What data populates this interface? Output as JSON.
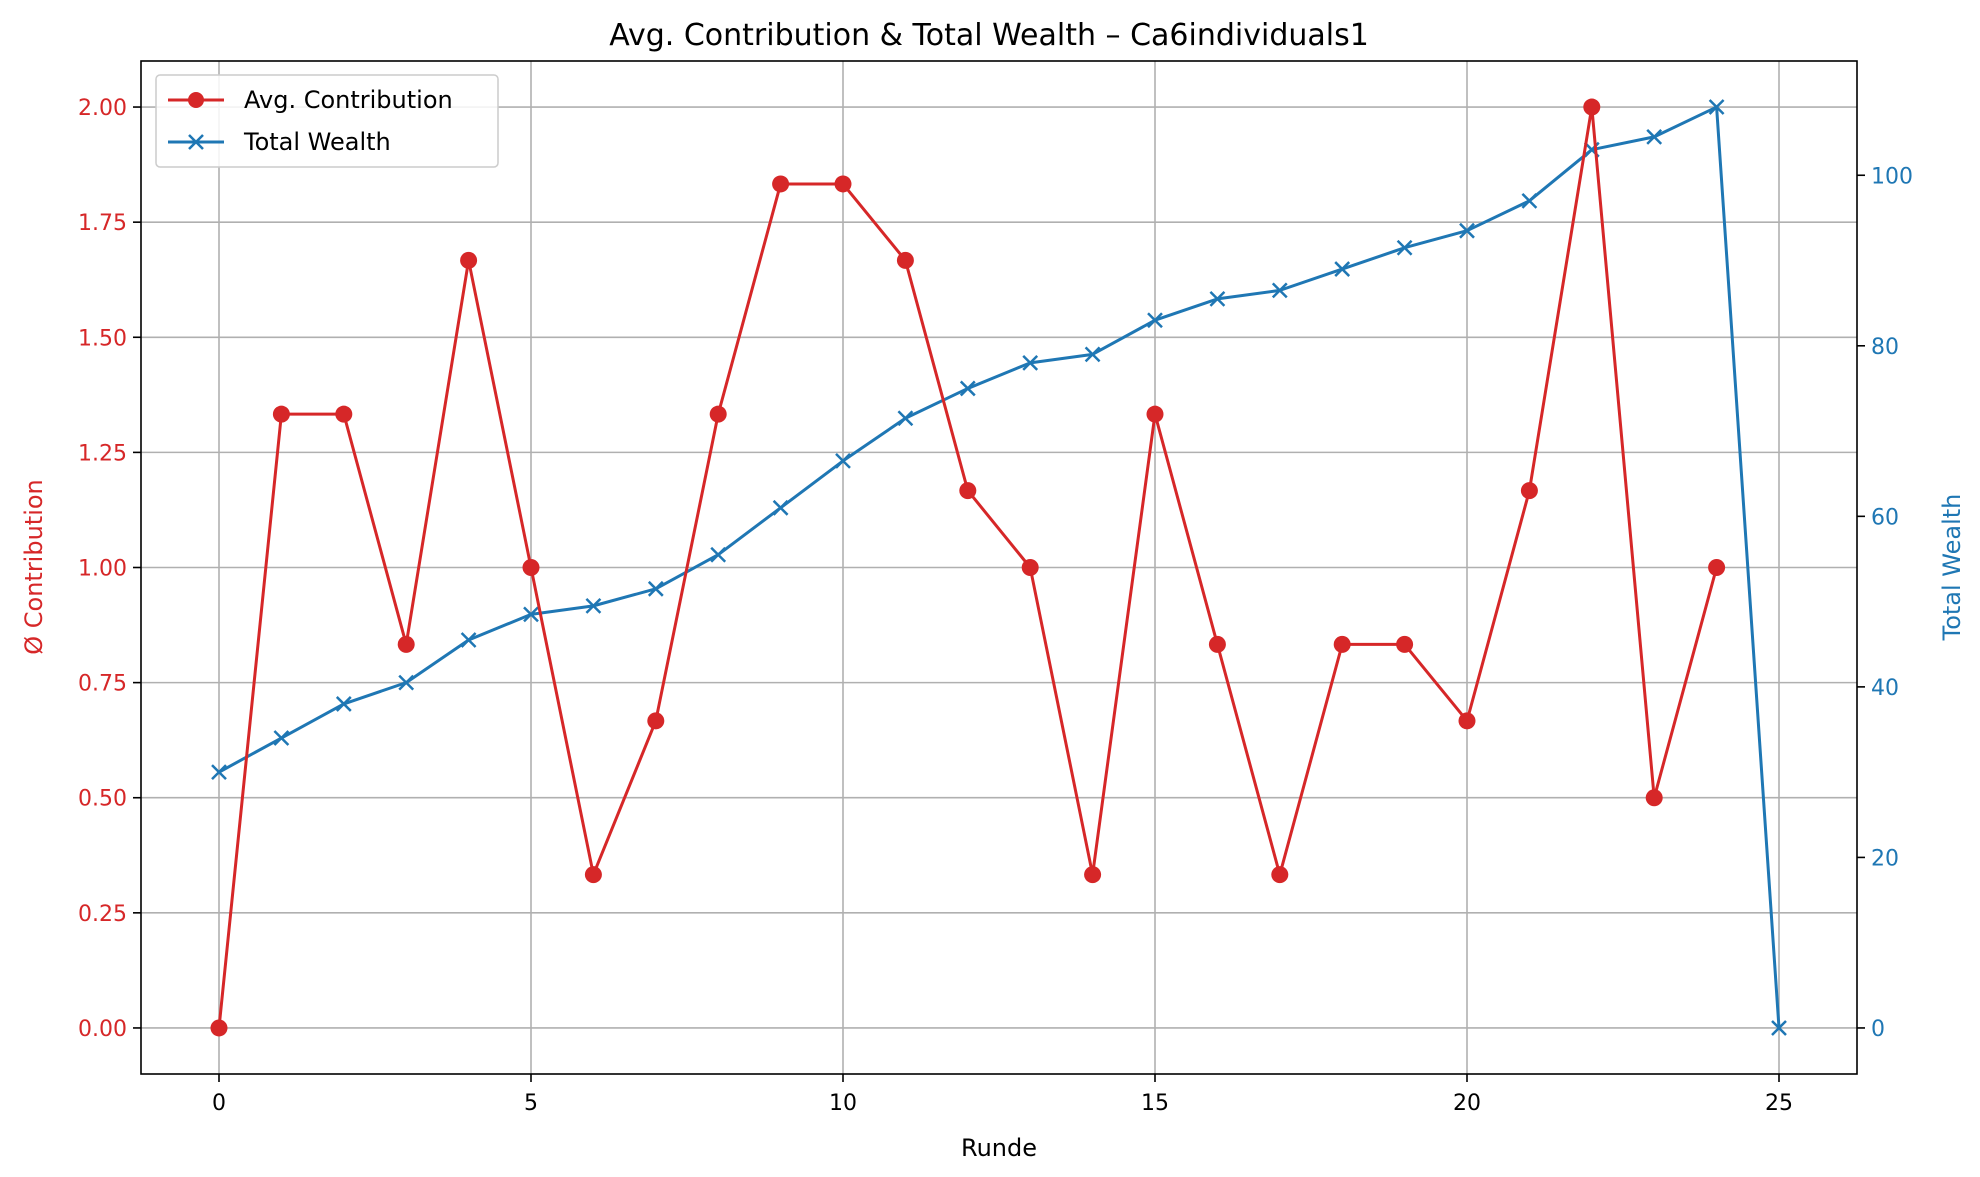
{
  "chart_data": {
    "type": "line",
    "title": "Avg. Contribution & Total Wealth – Ca6individuals1",
    "xlabel": "Runde",
    "ylabel_left": "Ø Contribution",
    "ylabel_right": "Total Wealth",
    "xlim": [
      -1.25,
      26.25
    ],
    "ylim_left": [
      -0.1,
      2.1
    ],
    "ylim_right": [
      -5.4,
      113.4
    ],
    "x_ticks": [
      0,
      5,
      10,
      15,
      20,
      25
    ],
    "y_ticks_left": [
      "0.00",
      "0.25",
      "0.50",
      "0.75",
      "1.00",
      "1.25",
      "1.50",
      "1.75",
      "2.00"
    ],
    "y_ticks_right": [
      0,
      20,
      40,
      60,
      80,
      100
    ],
    "grid": true,
    "legend_position": "upper-left",
    "colors": {
      "contribution": "#d62728",
      "wealth": "#1f77b4"
    },
    "series": [
      {
        "name": "Avg. Contribution",
        "axis": "left",
        "marker": "circle",
        "x": [
          0,
          1,
          2,
          3,
          4,
          5,
          6,
          7,
          8,
          9,
          10,
          11,
          12,
          13,
          14,
          15,
          16,
          17,
          18,
          19,
          20,
          21,
          22,
          23,
          24
        ],
        "values": [
          0.0,
          1.333,
          1.333,
          0.833,
          1.667,
          1.0,
          0.333,
          0.667,
          1.333,
          1.833,
          1.833,
          1.667,
          1.167,
          1.0,
          0.333,
          1.333,
          0.833,
          0.333,
          0.833,
          0.833,
          0.667,
          1.167,
          2.0,
          0.5,
          1.0
        ]
      },
      {
        "name": "Total Wealth",
        "axis": "right",
        "marker": "x",
        "x": [
          0,
          1,
          2,
          3,
          4,
          5,
          6,
          7,
          8,
          9,
          10,
          11,
          12,
          13,
          14,
          15,
          16,
          17,
          18,
          19,
          20,
          21,
          22,
          23,
          24,
          25
        ],
        "values": [
          30,
          34,
          38,
          40.5,
          45.5,
          48.5,
          49.5,
          51.5,
          55.5,
          61,
          66.5,
          71.5,
          75,
          78,
          79,
          83,
          85.5,
          86.5,
          89,
          91.5,
          93.5,
          97,
          103,
          104.5,
          108,
          0
        ]
      }
    ]
  }
}
